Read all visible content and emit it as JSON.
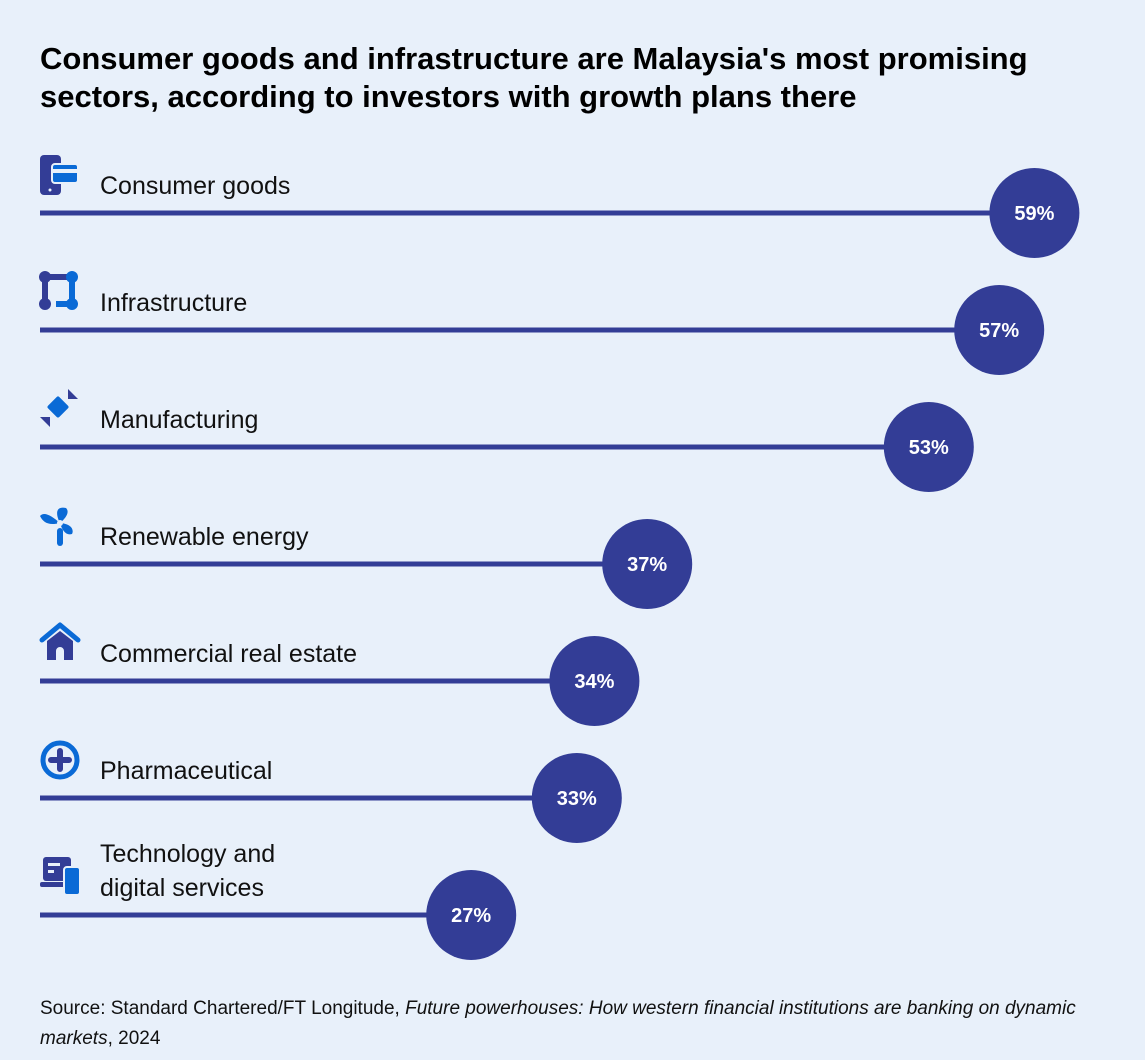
{
  "chart_data": {
    "type": "bar",
    "title": "Consumer goods and infrastructure are Malaysia's most promising sectors, according to investors with growth plans there",
    "categories": [
      [
        "Consumer goods"
      ],
      [
        "Infrastructure"
      ],
      [
        "Manufacturing"
      ],
      [
        "Renewable energy"
      ],
      [
        "Commercial real estate"
      ],
      [
        "Pharmaceutical"
      ],
      [
        "Technology and",
        "digital services"
      ]
    ],
    "icons": [
      "phone-card-icon",
      "network-nodes-icon",
      "manufacturing-icon",
      "wind-turbine-icon",
      "house-icon",
      "medical-cross-icon",
      "devices-icon"
    ],
    "values": [
      59,
      57,
      53,
      37,
      34,
      33,
      27
    ],
    "value_labels": [
      "59%",
      "57%",
      "53%",
      "37%",
      "34%",
      "33%",
      "27%"
    ],
    "unit": "%",
    "colors": {
      "bar": "#333d96",
      "icon_accent": "#0a6ad6",
      "background": "#e8f0fa",
      "label": "#ffffff"
    }
  },
  "source": {
    "prefix": "Source: Standard Chartered/FT Longitude, ",
    "italic": "Future powerhouses: How western financial institutions are banking on dynamic markets",
    "suffix": ", 2024"
  }
}
